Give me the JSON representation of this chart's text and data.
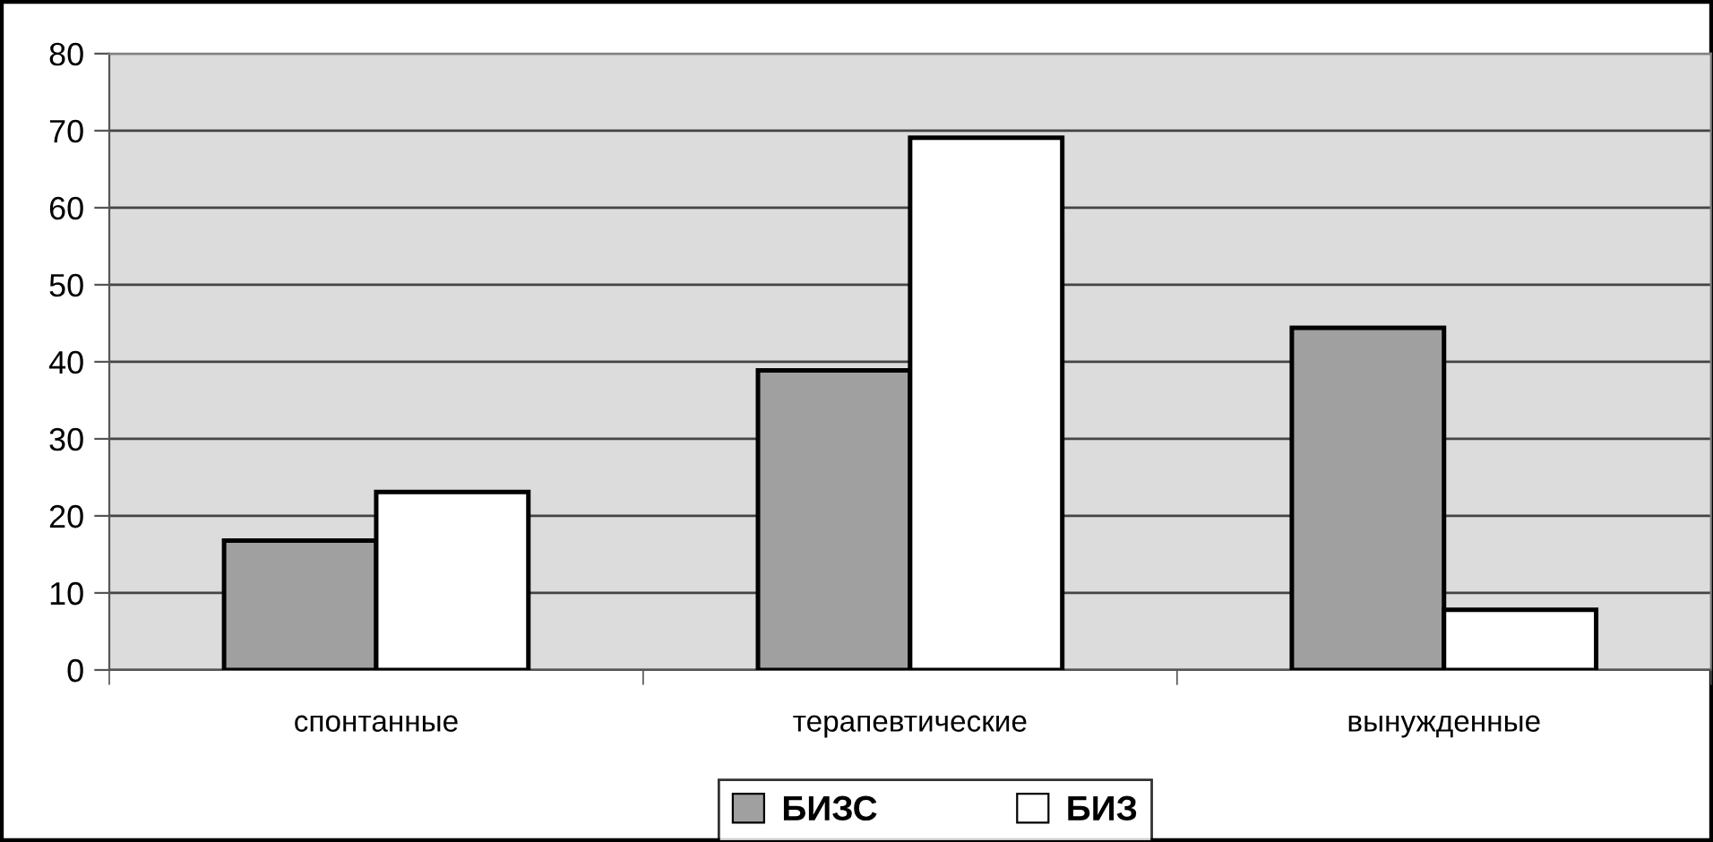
{
  "chart_data": {
    "type": "bar",
    "categories": [
      "спонтанные",
      "терапевтические",
      "вынужденные"
    ],
    "series": [
      {
        "name": "БИЗС",
        "color": "#a0a0a0",
        "values": [
          16.8,
          38.9,
          44.4
        ]
      },
      {
        "name": "БИЗ",
        "color": "#ffffff",
        "values": [
          23.1,
          69.1,
          7.8
        ]
      }
    ],
    "ylim": [
      0,
      80
    ],
    "yticks": [
      0,
      10,
      20,
      30,
      40,
      50,
      60,
      70,
      80
    ],
    "grid": "y",
    "legend": "bottom"
  }
}
